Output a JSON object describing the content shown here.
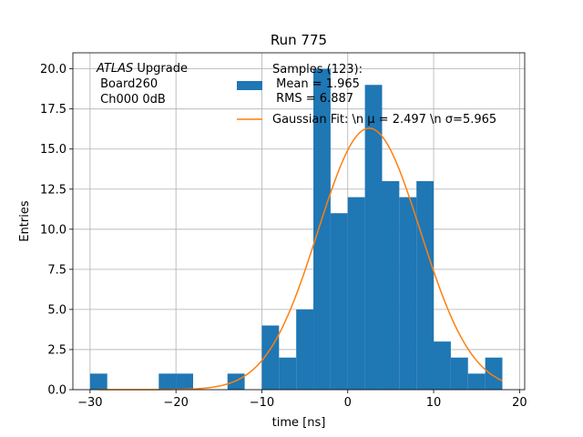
{
  "chart_data": {
    "type": "bar",
    "title": "Run 775",
    "xlabel": "time [ns]",
    "ylabel": "Entries",
    "xlim": [
      -32,
      20.6
    ],
    "ylim": [
      0,
      21
    ],
    "grid": true,
    "colors": {
      "histogram": "#1f77b4",
      "fit": "#ff7f0e",
      "grid": "#b0b0b0"
    },
    "xticks": [
      {
        "value": -30,
        "label": "−30"
      },
      {
        "value": -20,
        "label": "−20"
      },
      {
        "value": -10,
        "label": "−10"
      },
      {
        "value": 0,
        "label": "0"
      },
      {
        "value": 10,
        "label": "10"
      },
      {
        "value": 20,
        "label": "20"
      }
    ],
    "yticks": [
      {
        "value": 0,
        "label": "0.0"
      },
      {
        "value": 2.5,
        "label": "2.5"
      },
      {
        "value": 5,
        "label": "5.0"
      },
      {
        "value": 7.5,
        "label": "7.5"
      },
      {
        "value": 10,
        "label": "10.0"
      },
      {
        "value": 12.5,
        "label": "12.5"
      },
      {
        "value": 15,
        "label": "15.0"
      },
      {
        "value": 17.5,
        "label": "17.5"
      },
      {
        "value": 20,
        "label": "20.0"
      }
    ],
    "histogram": {
      "name": "Samples (123):\n Mean = 1.965\n RMS = 6.887",
      "bins": [
        {
          "start": -30,
          "end": -28,
          "count": 1
        },
        {
          "start": -22,
          "end": -20,
          "count": 1
        },
        {
          "start": -20,
          "end": -18,
          "count": 1
        },
        {
          "start": -14,
          "end": -12,
          "count": 1
        },
        {
          "start": -10,
          "end": -8,
          "count": 4
        },
        {
          "start": -8,
          "end": -6,
          "count": 2
        },
        {
          "start": -6,
          "end": -4,
          "count": 5
        },
        {
          "start": -4,
          "end": -2,
          "count": 20
        },
        {
          "start": -2,
          "end": 0,
          "count": 11
        },
        {
          "start": 0,
          "end": 2,
          "count": 12
        },
        {
          "start": 2,
          "end": 4,
          "count": 19
        },
        {
          "start": 4,
          "end": 6,
          "count": 13
        },
        {
          "start": 6,
          "end": 8,
          "count": 12
        },
        {
          "start": 8,
          "end": 10,
          "count": 13
        },
        {
          "start": 10,
          "end": 12,
          "count": 3
        },
        {
          "start": 12,
          "end": 14,
          "count": 2
        },
        {
          "start": 14,
          "end": 16,
          "count": 1
        },
        {
          "start": 16,
          "end": 18,
          "count": 2
        }
      ]
    },
    "fit": {
      "name": "Gaussian Fit: \\n μ = 2.497 \\n σ=5.965",
      "amplitude": 16.3,
      "mu": 2.497,
      "sigma": 5.965,
      "x_range": [
        -29,
        18
      ]
    },
    "legend": {
      "placement": "top-center",
      "entries": [
        {
          "kind": "patch",
          "lines": [
            "Samples (123):",
            " Mean = 1.965",
            " RMS = 6.887"
          ]
        },
        {
          "kind": "line",
          "lines": [
            "Gaussian Fit: \\n μ = 2.497 \\n σ=5.965"
          ]
        }
      ]
    },
    "annotation": {
      "lines": [
        {
          "italic": "ATLAS",
          "text": " Upgrade"
        },
        {
          "text": " Board260"
        },
        {
          "text": " Ch000 0dB"
        }
      ]
    }
  }
}
